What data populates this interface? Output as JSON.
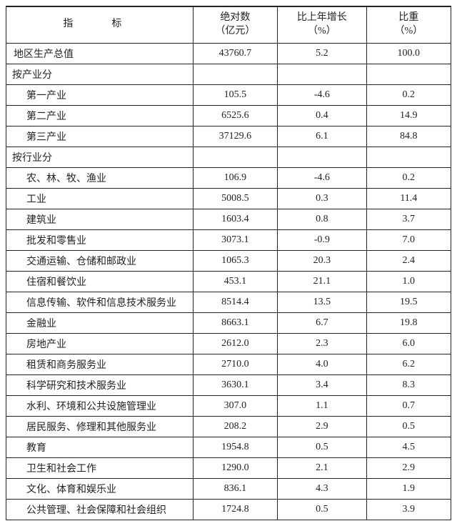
{
  "columns": {
    "indicator": "指　标",
    "absolute_l1": "绝对数",
    "absolute_l2": "（亿元）",
    "growth_l1": "比上年增长",
    "growth_l2": "（%）",
    "share_l1": "比重",
    "share_l2": "（%）"
  },
  "total": {
    "label": "地区生产总值",
    "absolute": "43760.7",
    "growth": "5.2",
    "share": "100.0"
  },
  "groups": [
    {
      "title": "按产业分",
      "rows": [
        {
          "label": "第一产业",
          "absolute": "105.5",
          "growth": "-4.6",
          "share": "0.2"
        },
        {
          "label": "第二产业",
          "absolute": "6525.6",
          "growth": "0.4",
          "share": "14.9"
        },
        {
          "label": "第三产业",
          "absolute": "37129.6",
          "growth": "6.1",
          "share": "84.8"
        }
      ]
    },
    {
      "title": "按行业分",
      "rows": [
        {
          "label": "农、林、牧、渔业",
          "absolute": "106.9",
          "growth": "-4.6",
          "share": "0.2"
        },
        {
          "label": "工业",
          "absolute": "5008.5",
          "growth": "0.3",
          "share": "11.4"
        },
        {
          "label": "建筑业",
          "absolute": "1603.4",
          "growth": "0.8",
          "share": "3.7"
        },
        {
          "label": "批发和零售业",
          "absolute": "3073.1",
          "growth": "-0.9",
          "share": "7.0"
        },
        {
          "label": "交通运输、仓储和邮政业",
          "absolute": "1065.3",
          "growth": "20.3",
          "share": "2.4"
        },
        {
          "label": "住宿和餐饮业",
          "absolute": "453.1",
          "growth": "21.1",
          "share": "1.0"
        },
        {
          "label": "信息传输、软件和信息技术服务业",
          "absolute": "8514.4",
          "growth": "13.5",
          "share": "19.5"
        },
        {
          "label": "金融业",
          "absolute": "8663.1",
          "growth": "6.7",
          "share": "19.8"
        },
        {
          "label": "房地产业",
          "absolute": "2612.0",
          "growth": "2.3",
          "share": "6.0"
        },
        {
          "label": "租赁和商务服务业",
          "absolute": "2710.0",
          "growth": "4.0",
          "share": "6.2"
        },
        {
          "label": "科学研究和技术服务业",
          "absolute": "3630.1",
          "growth": "3.4",
          "share": "8.3"
        },
        {
          "label": "水利、环境和公共设施管理业",
          "absolute": "307.0",
          "growth": "1.1",
          "share": "0.7"
        },
        {
          "label": "居民服务、修理和其他服务业",
          "absolute": "208.2",
          "growth": "2.9",
          "share": "0.5"
        },
        {
          "label": "教育",
          "absolute": "1954.8",
          "growth": "0.5",
          "share": "4.5"
        },
        {
          "label": "卫生和社会工作",
          "absolute": "1290.0",
          "growth": "2.1",
          "share": "2.9"
        },
        {
          "label": "文化、体育和娱乐业",
          "absolute": "836.1",
          "growth": "4.3",
          "share": "1.9"
        },
        {
          "label": "公共管理、社会保障和社会组织",
          "absolute": "1724.8",
          "growth": "0.5",
          "share": "3.9"
        }
      ]
    }
  ]
}
